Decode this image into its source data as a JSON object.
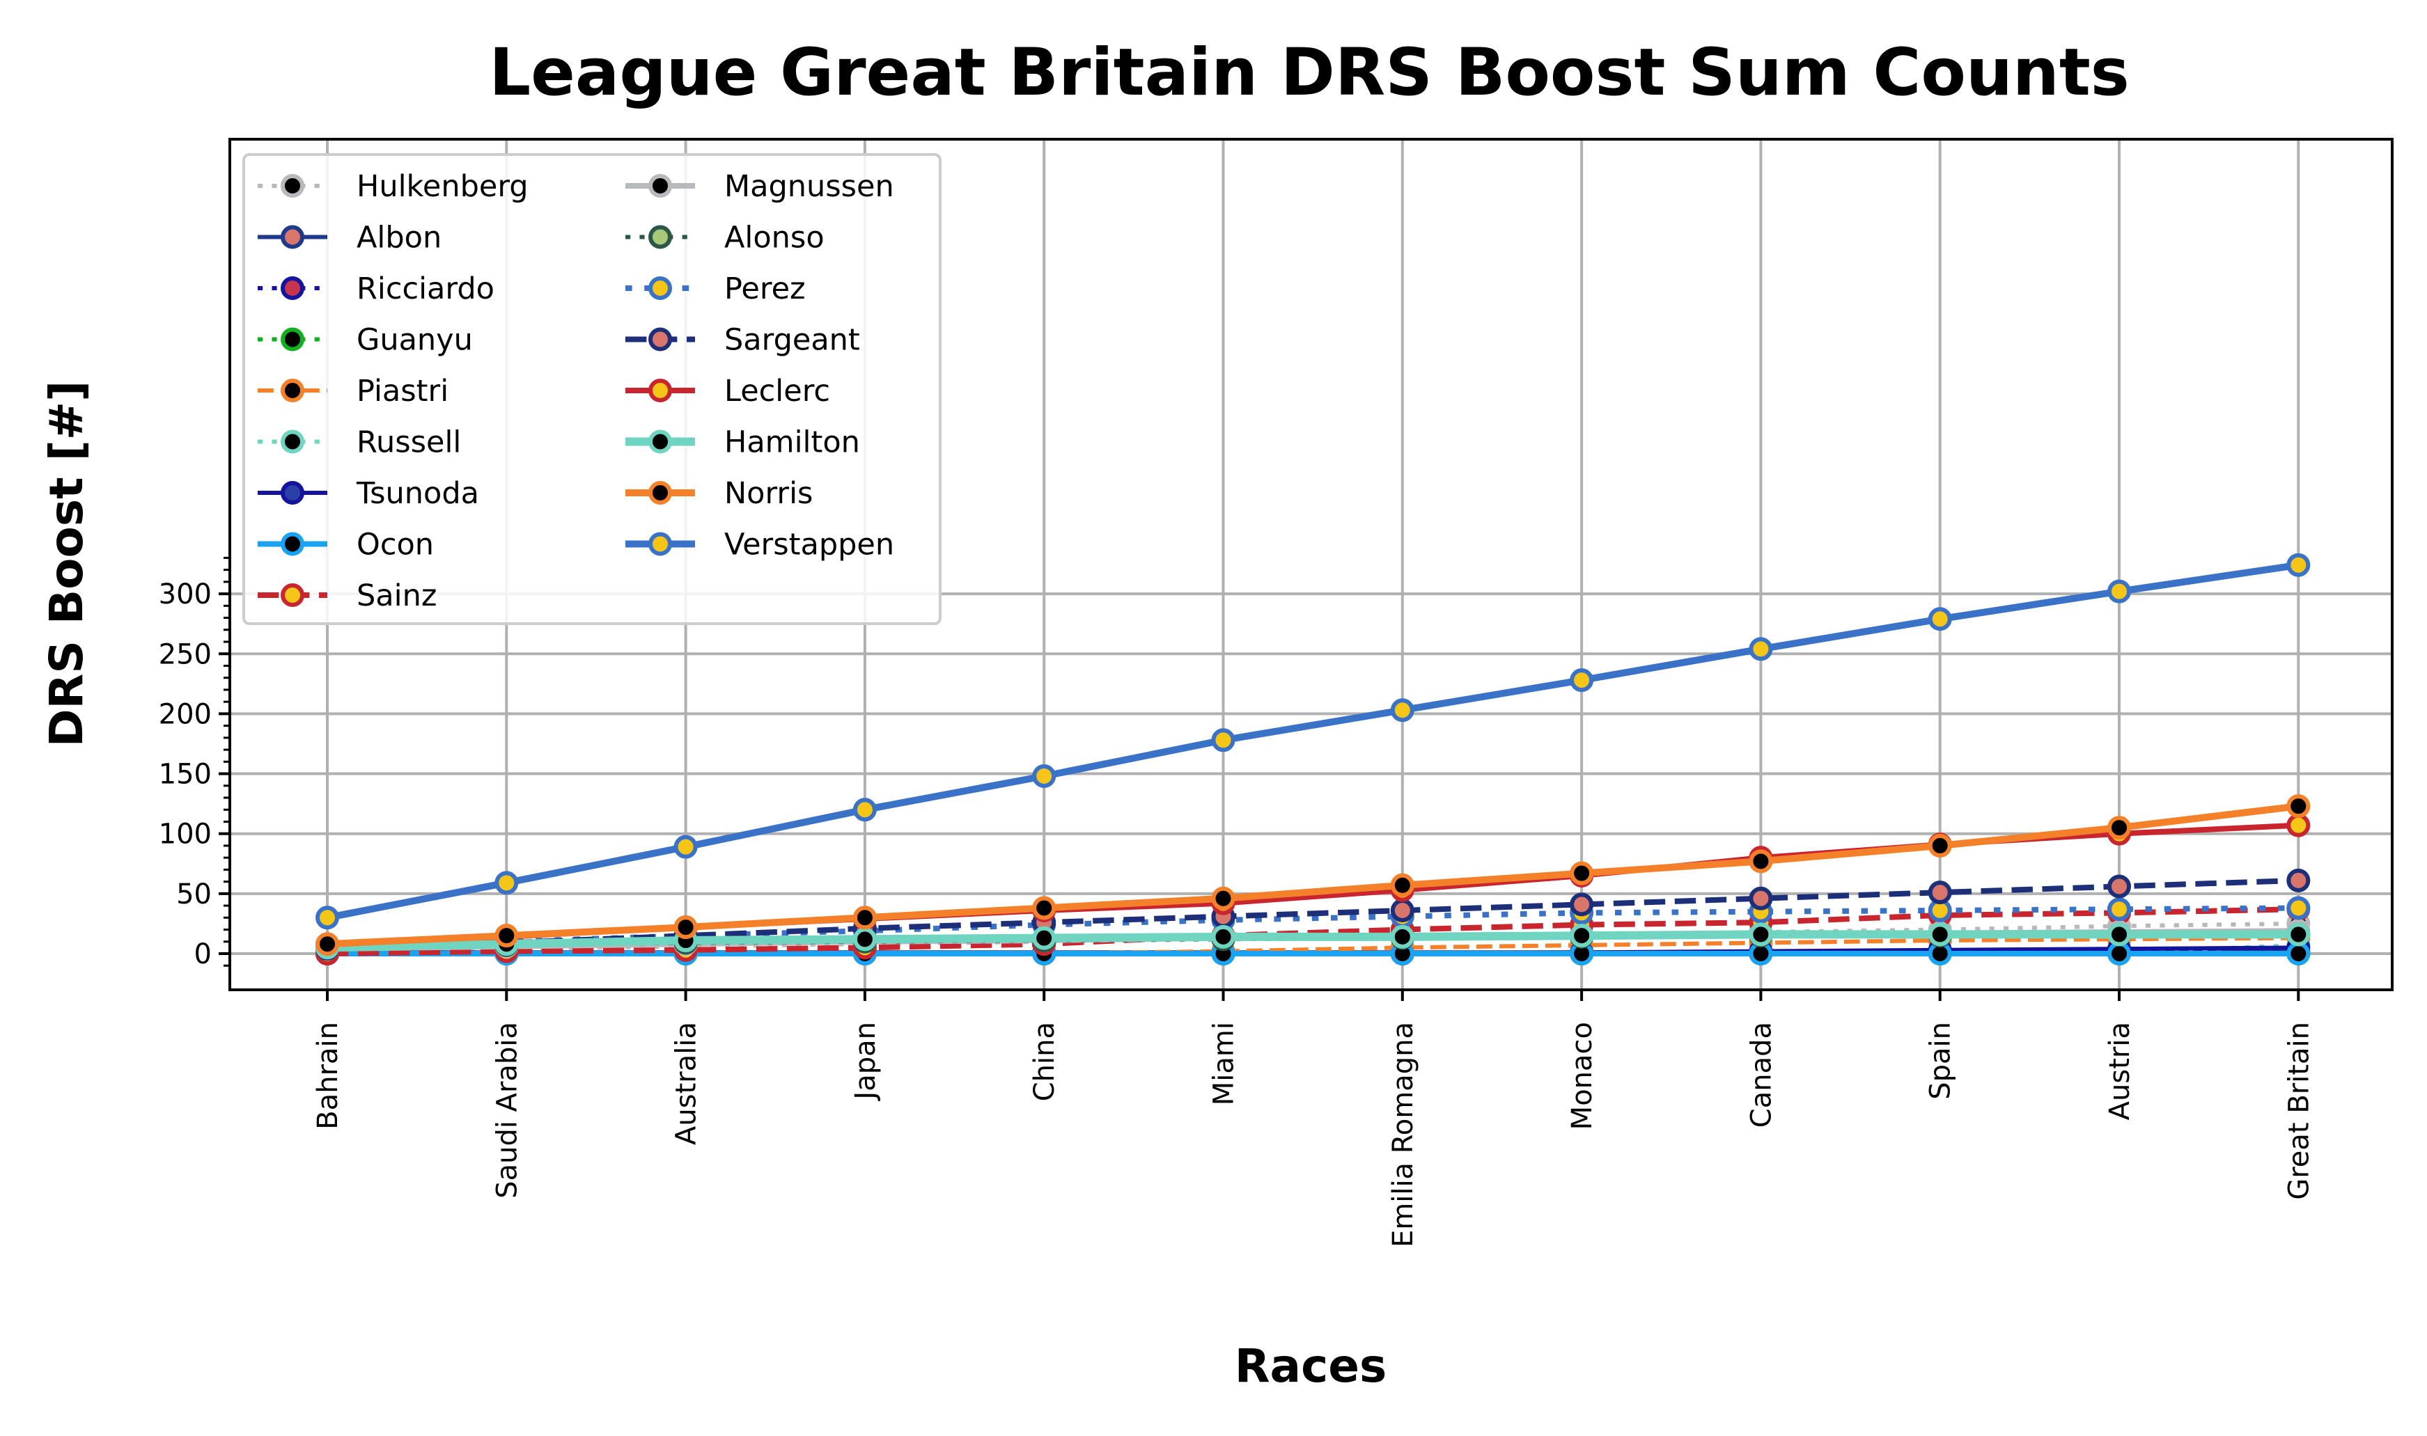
{
  "chart_data": {
    "type": "line",
    "title": "League Great Britain DRS Boost Sum Counts",
    "xlabel": "Races",
    "ylabel": "DRS Boost [#]",
    "categories": [
      "Bahrain",
      "Saudi Arabia",
      "Australia",
      "Japan",
      "China",
      "Miami",
      "Emilia Romagna",
      "Monaco",
      "Canada",
      "Spain",
      "Austria",
      "Great Britain"
    ],
    "ylim": [
      -15,
      340
    ],
    "yticks": [
      0,
      50,
      100,
      150,
      200,
      250,
      300
    ],
    "grid": true,
    "legend": {
      "placement": "top-left",
      "columns": 2
    },
    "series": [
      {
        "name": "Hulkenberg",
        "values": [
          2,
          4,
          6,
          8,
          10,
          12,
          14,
          16,
          18,
          20,
          23,
          25
        ],
        "color": "#b8b9bc",
        "dash": "dotted",
        "width": 6,
        "marker_face": "#000000",
        "marker_edge": "#b8b9bc"
      },
      {
        "name": "Albon",
        "values": [
          1,
          1,
          1,
          1,
          1,
          1,
          1,
          1,
          1,
          1,
          1,
          2
        ],
        "color": "#1f3a8a",
        "dash": "solid",
        "width": 6,
        "marker_face": "#d9766b",
        "marker_edge": "#1f3a8a"
      },
      {
        "name": "Ricciardo",
        "values": [
          0,
          0,
          0,
          0,
          0,
          0,
          0,
          0,
          0,
          0,
          0,
          1
        ],
        "color": "#1414a0",
        "dash": "dotted",
        "width": 6,
        "marker_face": "#c8334e",
        "marker_edge": "#1414a0"
      },
      {
        "name": "Guanyu",
        "values": [
          0,
          0,
          0,
          0,
          0,
          0,
          0,
          0,
          0,
          0,
          0,
          0
        ],
        "color": "#10b020",
        "dash": "dotted",
        "width": 6,
        "marker_face": "#000000",
        "marker_edge": "#10b020"
      },
      {
        "name": "Piastri",
        "values": [
          0,
          0,
          0,
          0,
          0,
          2,
          5,
          7,
          9,
          11,
          12,
          13
        ],
        "color": "#f4812a",
        "dash": "dashed",
        "width": 6,
        "marker_face": "#000000",
        "marker_edge": "#f4812a"
      },
      {
        "name": "Russell",
        "values": [
          0,
          0,
          0,
          0,
          0,
          0,
          0,
          0,
          0,
          0,
          1,
          7
        ],
        "color": "#6fd4c0",
        "dash": "dotted",
        "width": 6,
        "marker_face": "#000000",
        "marker_edge": "#6fd4c0"
      },
      {
        "name": "Tsunoda",
        "values": [
          0,
          0,
          0,
          0,
          0,
          0,
          0,
          1,
          2,
          3,
          4,
          5
        ],
        "color": "#14149c",
        "dash": "solid",
        "width": 6,
        "marker_face": "#2a3fa8",
        "marker_edge": "#14149c"
      },
      {
        "name": "Ocon",
        "values": [
          0,
          0,
          0,
          0,
          0,
          0,
          0,
          0,
          0,
          0,
          0,
          0
        ],
        "color": "#1aa3f0",
        "dash": "solid",
        "width": 8,
        "marker_face": "#000000",
        "marker_edge": "#1aa3f0"
      },
      {
        "name": "Sainz",
        "values": [
          0,
          2,
          3,
          5,
          8,
          15,
          20,
          24,
          26,
          32,
          34,
          37
        ],
        "color": "#c9252f",
        "dash": "dashed",
        "width": 8,
        "marker_face": "#f5c518",
        "marker_edge": "#c9252f"
      },
      {
        "name": "Magnussen",
        "values": [
          4,
          6,
          8,
          10,
          11,
          13,
          14,
          15,
          16,
          17,
          18,
          19
        ],
        "color": "#b8b9bc",
        "dash": "solid",
        "width": 8,
        "marker_face": "#000000",
        "marker_edge": "#b8b9bc"
      },
      {
        "name": "Alonso",
        "values": [
          5,
          7,
          9,
          10,
          11,
          12,
          13,
          14,
          15,
          15,
          16,
          16
        ],
        "color": "#2b5748",
        "dash": "dotted",
        "width": 6,
        "marker_face": "#a8c97a",
        "marker_edge": "#2b5748"
      },
      {
        "name": "Perez",
        "values": [
          6,
          10,
          15,
          19,
          24,
          28,
          31,
          34,
          35,
          36,
          37,
          38
        ],
        "color": "#3a72c8",
        "dash": "dotted",
        "width": 8,
        "marker_face": "#f5c518",
        "marker_edge": "#3a72c8"
      },
      {
        "name": "Sargeant",
        "values": [
          4,
          9,
          15,
          21,
          26,
          31,
          36,
          41,
          46,
          51,
          56,
          61
        ],
        "color": "#1c2f78",
        "dash": "dashed",
        "width": 8,
        "marker_face": "#d9766b",
        "marker_edge": "#1c2f78"
      },
      {
        "name": "Leclerc",
        "values": [
          7,
          14,
          22,
          29,
          36,
          42,
          53,
          65,
          80,
          91,
          100,
          107
        ],
        "color": "#c9252f",
        "dash": "solid",
        "width": 8,
        "marker_face": "#f5c518",
        "marker_edge": "#c9252f"
      },
      {
        "name": "Hamilton",
        "values": [
          5,
          8,
          11,
          12,
          13,
          14,
          14,
          15,
          16,
          16,
          16,
          16
        ],
        "color": "#6fd4c0",
        "dash": "solid",
        "width": 12,
        "marker_face": "#000000",
        "marker_edge": "#6fd4c0"
      },
      {
        "name": "Norris",
        "values": [
          8,
          15,
          22,
          30,
          38,
          46,
          57,
          67,
          77,
          90,
          105,
          123
        ],
        "color": "#f4812a",
        "dash": "solid",
        "width": 10,
        "marker_face": "#000000",
        "marker_edge": "#f4812a"
      },
      {
        "name": "Verstappen",
        "values": [
          30,
          59,
          89,
          120,
          148,
          178,
          203,
          228,
          254,
          279,
          302,
          324
        ],
        "color": "#3a72c8",
        "dash": "solid",
        "width": 10,
        "marker_face": "#f5c518",
        "marker_edge": "#3a72c8"
      }
    ]
  }
}
